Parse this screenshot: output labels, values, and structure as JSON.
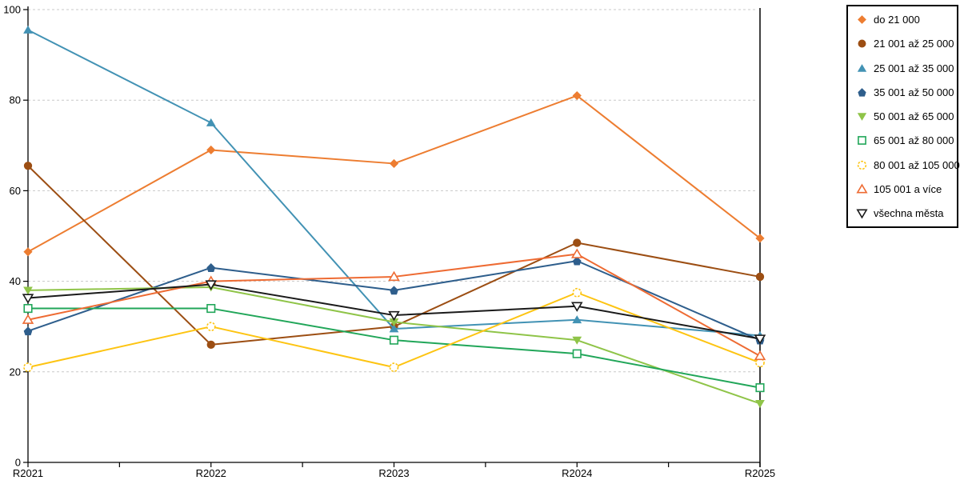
{
  "chart_data": {
    "type": "line",
    "title": "",
    "xlabel": "",
    "ylabel": "",
    "categories": [
      "R2021",
      "R2022",
      "R2023",
      "R2024",
      "R2025"
    ],
    "ylim": [
      0,
      100
    ],
    "yticks": [
      0,
      20,
      40,
      60,
      80,
      100
    ],
    "grid": "horizontal dashed gridlines at 20,40,60,80,100",
    "legend_position": "right",
    "axis_color": "#000000",
    "gridline_color": "#C9C9C9",
    "series": [
      {
        "name": "do 21 000",
        "color": "#ED7D31",
        "marker": "diamond-filled",
        "values": [
          46.5,
          69,
          66,
          81,
          49.5
        ]
      },
      {
        "name": "21 001 až 25 000",
        "color": "#9C4E13",
        "marker": "circle-filled",
        "values": [
          65.5,
          26,
          30,
          48.5,
          41
        ]
      },
      {
        "name": "25 001 až 35 000",
        "color": "#4292B4",
        "marker": "triangle-up-filled",
        "values": [
          95.5,
          75,
          29.5,
          31.5,
          28
        ]
      },
      {
        "name": "35 001 až 50 000",
        "color": "#2E5E8C",
        "marker": "pentagon-filled",
        "values": [
          29,
          43,
          38,
          44.5,
          27
        ]
      },
      {
        "name": "50 001 až 65 000",
        "color": "#8FC448",
        "marker": "triangle-down-filled",
        "values": [
          38,
          38.7,
          31,
          27,
          13
        ]
      },
      {
        "name": "65 001 až 80 000",
        "color": "#21A659",
        "marker": "square-open",
        "values": [
          34,
          34,
          27,
          24,
          16.5
        ]
      },
      {
        "name": "80 001 až 105 000",
        "color": "#FDC412",
        "marker": "circle-open-dashed",
        "values": [
          21,
          30,
          21,
          37.5,
          22
        ]
      },
      {
        "name": "105 001 a více",
        "color": "#EE6B33",
        "marker": "triangle-up-open",
        "values": [
          31.5,
          40,
          41,
          46,
          23.5
        ]
      },
      {
        "name": "všechna města",
        "color": "#1A1A1A",
        "marker": "triangle-down-open",
        "values": [
          36.3,
          39.3,
          32.5,
          34.5,
          27.3
        ]
      }
    ]
  }
}
